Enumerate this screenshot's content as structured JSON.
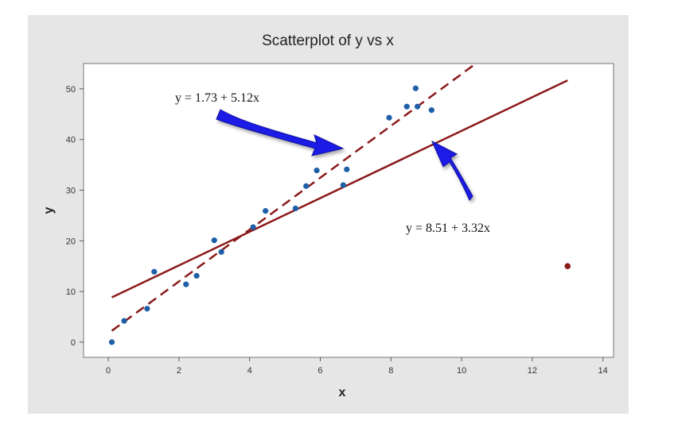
{
  "chart_data": {
    "type": "scatter",
    "title": "Scatterplot of y vs x",
    "xlabel": "x",
    "ylabel": "y",
    "xlim": [
      -0.7,
      14.3
    ],
    "ylim": [
      -3,
      55
    ],
    "xticks": [
      0,
      2,
      4,
      6,
      8,
      10,
      12,
      14
    ],
    "yticks": [
      0,
      10,
      20,
      30,
      40,
      50
    ],
    "grid": false,
    "points": [
      {
        "x": 0.1,
        "y": 0.0
      },
      {
        "x": 0.45,
        "y": 4.2
      },
      {
        "x": 1.1,
        "y": 6.6
      },
      {
        "x": 1.3,
        "y": 13.9
      },
      {
        "x": 2.2,
        "y": 11.4
      },
      {
        "x": 2.5,
        "y": 13.1
      },
      {
        "x": 3.0,
        "y": 20.1
      },
      {
        "x": 3.2,
        "y": 17.8
      },
      {
        "x": 4.1,
        "y": 22.7
      },
      {
        "x": 4.45,
        "y": 25.9
      },
      {
        "x": 5.3,
        "y": 26.4
      },
      {
        "x": 5.6,
        "y": 30.8
      },
      {
        "x": 5.9,
        "y": 33.9
      },
      {
        "x": 6.65,
        "y": 31.0
      },
      {
        "x": 6.75,
        "y": 34.1
      },
      {
        "x": 7.95,
        "y": 44.3
      },
      {
        "x": 8.45,
        "y": 46.5
      },
      {
        "x": 8.7,
        "y": 50.1
      },
      {
        "x": 8.75,
        "y": 46.5
      },
      {
        "x": 9.15,
        "y": 45.8
      }
    ],
    "outlier": {
      "x": 13.0,
      "y": 15.0
    },
    "lines": [
      {
        "label": "y = 1.73 + 5.12x",
        "intercept": 1.73,
        "slope": 5.12,
        "x_range": [
          0.1,
          10.4
        ],
        "style": "dashed"
      },
      {
        "label": "y = 8.51 + 3.32x",
        "intercept": 8.51,
        "slope": 3.32,
        "x_range": [
          0.1,
          13.0
        ],
        "style": "solid"
      }
    ],
    "colors": {
      "points": "#1f5fa8",
      "outlier": "#8b1a1a",
      "fit_lines": "#8b1a1a",
      "arrows": "#1a1ae6",
      "frame_bg": "#e6e6e6",
      "plot_bg": "#ffffff"
    }
  }
}
